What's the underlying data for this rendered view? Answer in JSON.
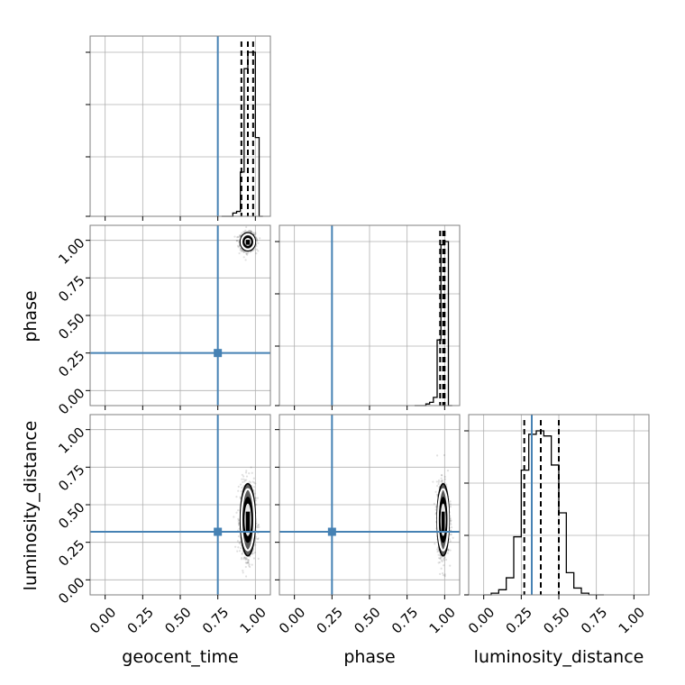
{
  "chart_data": {
    "type": "corner",
    "parameters": [
      "geocent_time",
      "phase",
      "luminosity_distance"
    ],
    "axis_range": [
      -0.1,
      1.1
    ],
    "ticks": [
      0.0,
      0.25,
      0.5,
      0.75,
      1.0
    ],
    "tick_labels": [
      "0.00",
      "0.25",
      "0.50",
      "0.75",
      "1.00"
    ],
    "truths": {
      "geocent_time": 0.75,
      "phase": 0.25,
      "luminosity_distance": 0.32
    },
    "quantiles": {
      "geocent_time": [
        0.907,
        0.95,
        0.985
      ],
      "phase": [
        0.97,
        0.99,
        1.0
      ],
      "luminosity_distance": [
        0.27,
        0.38,
        0.5
      ]
    },
    "histograms": {
      "geocent_time": {
        "edges": [
          0.775,
          0.8,
          0.825,
          0.85,
          0.875,
          0.9,
          0.925,
          0.95,
          0.975,
          1.0,
          1.025,
          1.05
        ],
        "counts": [
          0,
          0,
          0,
          0.02,
          0.03,
          0.27,
          0.9,
          1.0,
          1.0,
          0.48,
          0
        ]
      },
      "phase": {
        "edges": [
          0.8,
          0.825,
          0.85,
          0.875,
          0.9,
          0.925,
          0.95,
          0.975,
          1.0,
          1.025,
          1.05
        ],
        "counts": [
          0,
          0,
          0,
          0.01,
          0.02,
          0.05,
          0.4,
          0.98,
          1.0,
          0
        ]
      },
      "luminosity_distance": {
        "edges": [
          0.0,
          0.05,
          0.1,
          0.15,
          0.2,
          0.25,
          0.3,
          0.35,
          0.4,
          0.45,
          0.5,
          0.55,
          0.6,
          0.65,
          0.7,
          0.75,
          0.8
        ],
        "counts": [
          0,
          0.01,
          0.03,
          0.1,
          0.34,
          0.73,
          0.94,
          0.96,
          0.93,
          0.76,
          0.48,
          0.13,
          0.04,
          0.01,
          0,
          0
        ]
      }
    },
    "posterior_2d": {
      "phase_vs_geocent_time": {
        "center": [
          0.95,
          0.99
        ],
        "spread": [
          0.025,
          0.03
        ]
      },
      "luminosity_distance_vs_geocent_time": {
        "center": [
          0.95,
          0.4
        ],
        "spread": [
          0.025,
          0.12
        ]
      },
      "luminosity_distance_vs_phase": {
        "center": [
          0.99,
          0.4
        ],
        "spread": [
          0.02,
          0.12
        ]
      }
    }
  },
  "labels": {
    "x_geocent_time": "geocent_time",
    "x_phase": "phase",
    "x_luminosity_distance": "luminosity_distance",
    "y_phase": "phase",
    "y_luminosity_distance": "luminosity_distance"
  },
  "colors": {
    "truth": "#4682b4",
    "frame": "#7f7f7f",
    "grid": "#b0b0b0"
  }
}
